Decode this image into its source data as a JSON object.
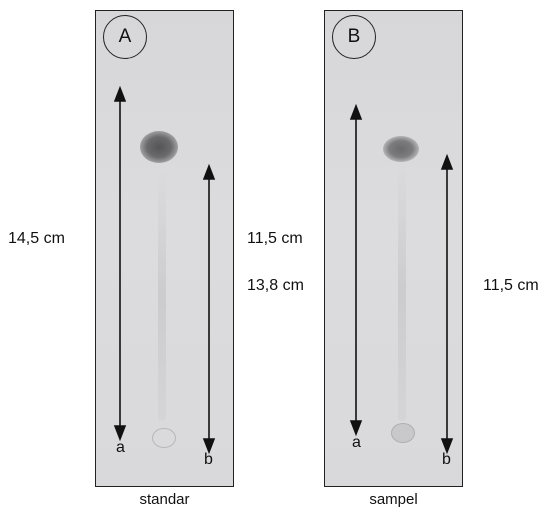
{
  "plates": [
    {
      "badge": "A",
      "caption": "standar",
      "arrow_a_label": "a",
      "arrow_b_label": "b",
      "left_measure": "14,5 cm",
      "right_measure": "11,5 cm"
    },
    {
      "badge": "B",
      "caption": "sampel",
      "arrow_a_label": "a",
      "arrow_b_label": "b",
      "left_measure": "13,8 cm",
      "right_measure": "11,5 cm"
    }
  ],
  "colors": {
    "plate": "#d9d9db",
    "spot_dark": "#5c5c5e",
    "arrow": "#111111"
  }
}
